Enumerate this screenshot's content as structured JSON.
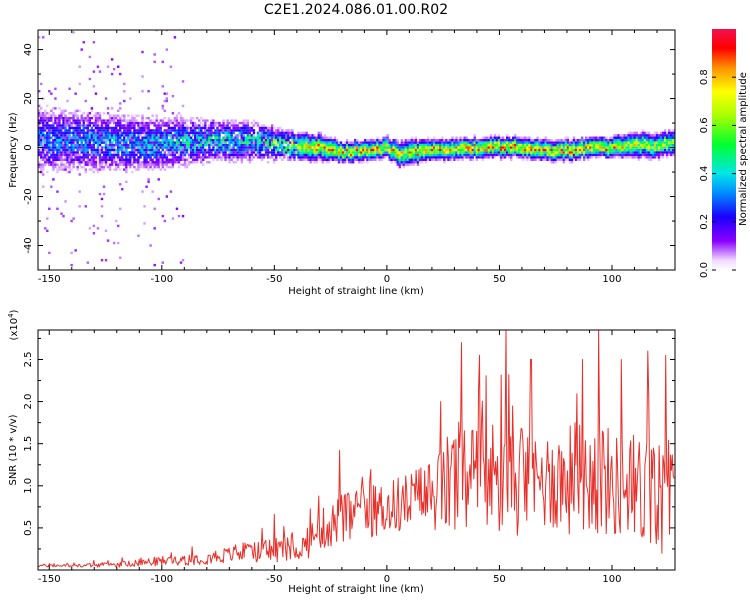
{
  "title": "C2E1.2024.086.01.00.R02",
  "chart_data": [
    {
      "type": "heatmap",
      "xlabel": "Height of straight line (km)",
      "ylabel": "Frequency (Hz)",
      "xlim": [
        -155,
        128
      ],
      "ylim": [
        -50,
        48
      ],
      "xticks": [
        "-150",
        "-100",
        "-50",
        "0",
        "50",
        "100"
      ],
      "yticks": [
        "40",
        "20",
        "0",
        "-20",
        "-40"
      ],
      "colorbar": {
        "label": "Normalized spectral amplitude",
        "range": [
          0.0,
          1.0
        ],
        "ticks": [
          "0.0",
          "0.2",
          "0.4",
          "0.6",
          "0.8"
        ]
      },
      "ridge": {
        "x": [
          -155,
          -140,
          -120,
          -100,
          -80,
          -60,
          -45,
          -30,
          -20,
          -10,
          0,
          5,
          10,
          20,
          30,
          40,
          50,
          60,
          70,
          80,
          90,
          100,
          110,
          120,
          128
        ],
        "frequency": [
          3,
          3,
          2,
          2,
          3,
          3,
          1,
          0,
          -2,
          -1,
          0,
          -3,
          -2,
          -1,
          -1,
          0,
          0,
          0,
          -1,
          -1,
          0,
          0,
          1,
          1,
          2
        ],
        "peak_amplitude": [
          0.35,
          0.38,
          0.4,
          0.45,
          0.5,
          0.55,
          0.7,
          0.85,
          0.85,
          0.85,
          0.85,
          0.75,
          0.8,
          0.85,
          0.85,
          0.9,
          0.9,
          0.9,
          0.9,
          0.9,
          0.85,
          0.85,
          0.75,
          0.7,
          0.65
        ],
        "spread_hz": [
          14,
          13,
          12,
          11,
          9,
          8,
          6,
          5,
          4,
          4,
          4,
          5,
          5,
          4,
          4,
          4,
          4,
          4,
          4,
          4,
          4,
          4,
          5,
          5,
          5
        ]
      }
    },
    {
      "type": "line",
      "xlabel": "Height of straight line (km)",
      "ylabel": "SNR (10 * v/v)",
      "y_multiplier": "(x10",
      "y_multiplier_exp": "4",
      "y_multiplier_close": ")",
      "xlim": [
        -155,
        128
      ],
      "ylim": [
        0,
        2.85
      ],
      "xticks": [
        "-150",
        "-100",
        "-50",
        "0",
        "50",
        "100"
      ],
      "yticks": [
        "0.5",
        "1.0",
        "1.5",
        "2.0",
        "2.5"
      ],
      "series": [
        {
          "color": "#e8302a",
          "x": [
            -155,
            -140,
            -120,
            -100,
            -80,
            -60,
            -50,
            -40,
            -35,
            -30,
            -25,
            -20,
            -10,
            0,
            10,
            20,
            25,
            30,
            40,
            50,
            60,
            70,
            80,
            90,
            95,
            100,
            110,
            120,
            128
          ],
          "baseline": [
            0.05,
            0.05,
            0.06,
            0.1,
            0.14,
            0.2,
            0.22,
            0.22,
            0.3,
            0.45,
            0.5,
            0.55,
            0.65,
            0.7,
            0.78,
            0.85,
            0.9,
            1.0,
            1.05,
            1.0,
            0.95,
            1.0,
            1.0,
            1.05,
            1.05,
            0.95,
            0.85,
            0.8,
            0.75
          ],
          "amplitude": [
            0.03,
            0.03,
            0.05,
            0.1,
            0.14,
            0.18,
            0.3,
            0.18,
            0.3,
            0.4,
            0.45,
            0.55,
            0.5,
            0.55,
            0.6,
            0.75,
            0.9,
            1.2,
            1.1,
            1.2,
            1.0,
            1.0,
            1.1,
            1.2,
            1.3,
            1.0,
            1.2,
            1.2,
            1.0
          ],
          "peaks": [
            {
              "x": -21,
              "y": 1.42
            },
            {
              "x": -50,
              "y": 0.66
            },
            {
              "x": 24,
              "y": 2.0
            },
            {
              "x": 33,
              "y": 2.7
            },
            {
              "x": 41,
              "y": 2.55
            },
            {
              "x": 53,
              "y": 2.85
            },
            {
              "x": 64,
              "y": 2.5
            },
            {
              "x": 87,
              "y": 2.5
            },
            {
              "x": 94,
              "y": 2.85
            },
            {
              "x": 104,
              "y": 2.5
            },
            {
              "x": 116,
              "y": 2.6
            },
            {
              "x": 124,
              "y": 2.55
            }
          ]
        }
      ]
    }
  ]
}
